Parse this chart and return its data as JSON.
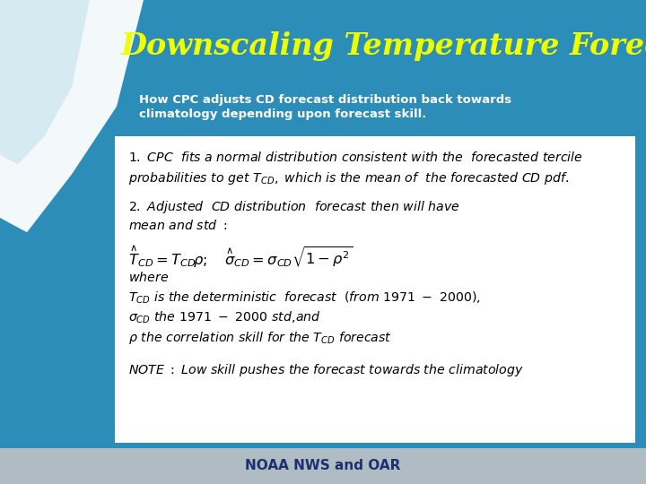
{
  "title": "Downscaling Temperature Forecasts",
  "title_color": "#EEFF00",
  "header_bg_color": "#2B8DB8",
  "subtitle_line1": "How CPC adjusts CD forecast distribution back towards",
  "subtitle_line2": "climatology depending upon forecast skill.",
  "subtitle_color": "#FFFFFF",
  "content_bg_color": "#FFFFFF",
  "footer_text": "NOAA NWS and OAR",
  "footer_text_color": "#1A3070",
  "footer_bg_color": "#B0BCC4",
  "swoosh_color1": "#FFFFFF",
  "swoosh_color2": "#D0E8F0"
}
